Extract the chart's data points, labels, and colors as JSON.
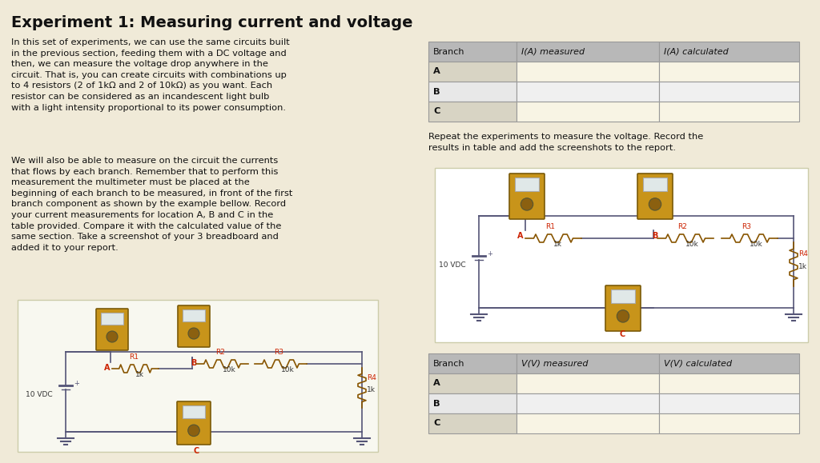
{
  "title": "Experiment 1: Measuring current and voltage",
  "bg_color": "#f0ead8",
  "left_text_para1": "In this set of experiments, we can use the same circuits built\nin the previous section, feeding them with a DC voltage and\nthen, we can measure the voltage drop anywhere in the\ncircuit. That is, you can create circuits with combinations up\nto 4 resistors (2 of 1kΩ and 2 of 10kΩ) as you want. Each\nresistor can be considered as an incandescent light bulb\nwith a light intensity proportional to its power consumption.",
  "left_text_para2": "We will also be able to measure on the circuit the currents\nthat flows by each branch. Remember that to perform this\nmeasurement the multimeter must be placed at the\nbeginning of each branch to be measured, in front of the first\nbranch component as shown by the example bellow. Record\nyour current measurements for location A, B and C in the\ntable provided. Compare it with the calculated value of the\nsame section. Take a screenshot of your 3 breadboard and\nadded it to your report.",
  "table1_header": [
    "Branch",
    "I(A) measured",
    "I(A) calculated"
  ],
  "table1_rows": [
    "A",
    "B",
    "C"
  ],
  "table2_header": [
    "Branch",
    "V(V) measured",
    "V(V) calculated"
  ],
  "table2_rows": [
    "A",
    "B",
    "C"
  ],
  "repeat_text": "Repeat the experiments to measure the voltage. Record the\nresults in table and add the screenshots to the report.",
  "header_bg": "#b8b8b8",
  "row_A_bg": "#d8d4c4",
  "row_B_bg": "#e8e8e8",
  "row_C_bg": "#d8d4c4",
  "table_border": "#999999",
  "circuit_bg": "#f8f8f0",
  "circuit2_bg": "#ffffff",
  "title_fontsize": 14,
  "body_fontsize": 8.2,
  "table_header_fontsize": 8.0,
  "table_row_fontsize": 8.2,
  "mm_color": "#C8941A",
  "mm_edge": "#7a5a08",
  "wire_color": "#555577",
  "resistor_color": "#cc3300",
  "label_color": "#333333",
  "red_label": "#cc2200"
}
